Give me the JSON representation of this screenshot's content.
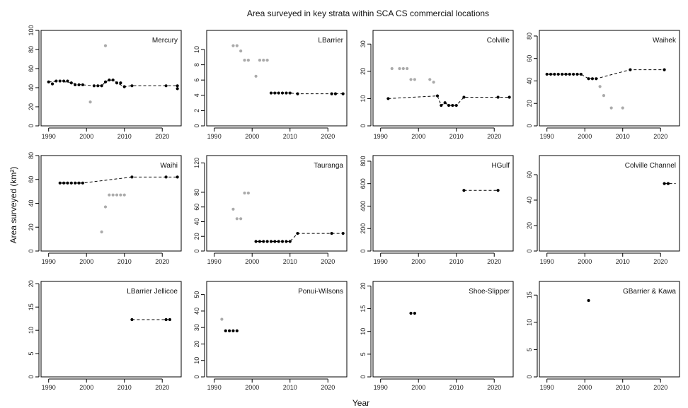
{
  "title": "Area surveyed in key strata within SCA CS commercial locations",
  "xlabel": "Year",
  "ylabel": "Area surveyed (km²)",
  "chart_data": {
    "type": "scatter",
    "title": "Area surveyed in key strata within SCA CS commercial locations",
    "xlabel": "Year",
    "ylabel": "Area surveyed (km²)",
    "legend": "none",
    "grid": false,
    "colors": {
      "current": "#000000",
      "historical": "#aaaaaa",
      "trend": "#000000"
    },
    "panels": [
      {
        "name": "Mercury",
        "xlim": [
          1988,
          2025
        ],
        "ylim": [
          0,
          100
        ],
        "xticks": [
          1990,
          2000,
          2010,
          2020
        ],
        "yticks": [
          0,
          20,
          40,
          60,
          80,
          100
        ],
        "series": [
          {
            "kind": "current",
            "x": [
              1990,
              1991,
              1992,
              1993,
              1994,
              1995,
              1996,
              1997,
              1998,
              1999,
              2002,
              2003,
              2004,
              2005,
              2006,
              2007,
              2008,
              2009,
              2010,
              2012,
              2021,
              2024,
              2024
            ],
            "y": [
              46,
              44,
              47,
              47,
              47,
              47,
              45,
              43,
              43,
              43,
              42,
              42,
              42,
              46,
              48,
              48,
              45,
              45,
              41,
              42,
              42,
              42,
              39
            ]
          },
          {
            "kind": "historical",
            "x": [
              2001,
              2005
            ],
            "y": [
              25,
              84
            ]
          },
          {
            "kind": "trend",
            "x": [
              1990,
              1993,
              1996,
              1999,
              2002,
              2004,
              2005,
              2006,
              2007,
              2008,
              2010,
              2012,
              2024
            ],
            "y": [
              46,
              47,
              45,
              43,
              42,
              42,
              46,
              48,
              48,
              45,
              41,
              42,
              42
            ]
          }
        ]
      },
      {
        "name": "LBarrier",
        "xlim": [
          1988,
          2025
        ],
        "ylim": [
          0,
          12.5
        ],
        "xticks": [
          1990,
          2000,
          2010,
          2020
        ],
        "yticks": [
          0,
          2,
          4,
          6,
          8,
          10
        ],
        "series": [
          {
            "kind": "current",
            "x": [
              2005,
              2006,
              2007,
              2008,
              2009,
              2010,
              2012,
              2021,
              2022,
              2024
            ],
            "y": [
              4.3,
              4.3,
              4.3,
              4.3,
              4.3,
              4.3,
              4.2,
              4.2,
              4.2,
              4.2
            ]
          },
          {
            "kind": "historical",
            "x": [
              1995,
              1996,
              1997,
              1998,
              1999,
              2001,
              2002,
              2003,
              2004
            ],
            "y": [
              10.5,
              10.5,
              9.8,
              8.6,
              8.6,
              6.5,
              8.6,
              8.6,
              8.6
            ]
          },
          {
            "kind": "trend",
            "x": [
              2005,
              2010,
              2012,
              2024
            ],
            "y": [
              4.3,
              4.3,
              4.2,
              4.2
            ]
          }
        ]
      },
      {
        "name": "Colville",
        "xlim": [
          1988,
          2025
        ],
        "ylim": [
          0,
          35
        ],
        "xticks": [
          1990,
          2000,
          2010,
          2020
        ],
        "yticks": [
          0,
          10,
          20,
          30
        ],
        "series": [
          {
            "kind": "current",
            "x": [
              1992,
              2005,
              2006,
              2007,
              2008,
              2009,
              2010,
              2012,
              2021,
              2024
            ],
            "y": [
              10,
              11,
              7.5,
              8.5,
              7.5,
              7.5,
              7.5,
              10.5,
              10.5,
              10.5
            ]
          },
          {
            "kind": "historical",
            "x": [
              1993,
              1995,
              1996,
              1997,
              1998,
              1999,
              2003,
              2004
            ],
            "y": [
              21,
              21,
              21,
              21,
              17,
              17,
              17,
              16
            ]
          },
          {
            "kind": "trend",
            "x": [
              1992,
              2005,
              2006,
              2007,
              2008,
              2010,
              2012,
              2024
            ],
            "y": [
              10,
              11,
              7.5,
              8.5,
              7.5,
              7.5,
              10.5,
              10.5
            ]
          }
        ]
      },
      {
        "name": "Waihek",
        "xlim": [
          1988,
          2025
        ],
        "ylim": [
          0,
          85
        ],
        "xticks": [
          1990,
          2000,
          2010,
          2020
        ],
        "yticks": [
          0,
          20,
          40,
          60,
          80
        ],
        "series": [
          {
            "kind": "current",
            "x": [
              1990,
              1991,
              1992,
              1993,
              1994,
              1995,
              1996,
              1997,
              1998,
              1999,
              2001,
              2002,
              2003,
              2012,
              2021
            ],
            "y": [
              46,
              46,
              46,
              46,
              46,
              46,
              46,
              46,
              46,
              46,
              42,
              42,
              42,
              50,
              50
            ]
          },
          {
            "kind": "historical",
            "x": [
              2004,
              2005,
              2007,
              2010
            ],
            "y": [
              35,
              27,
              16,
              16
            ]
          },
          {
            "kind": "trend",
            "x": [
              1990,
              1999,
              2001,
              2003,
              2012,
              2021
            ],
            "y": [
              46,
              46,
              42,
              42,
              50,
              50
            ]
          }
        ]
      },
      {
        "name": "Waihi",
        "xlim": [
          1988,
          2025
        ],
        "ylim": [
          0,
          80
        ],
        "xticks": [
          1990,
          2000,
          2010,
          2020
        ],
        "yticks": [
          0,
          20,
          40,
          60,
          80
        ],
        "series": [
          {
            "kind": "current",
            "x": [
              1993,
              1994,
              1995,
              1996,
              1997,
              1998,
              1999,
              2012,
              2021,
              2024
            ],
            "y": [
              57,
              57,
              57,
              57,
              57,
              57,
              57,
              62,
              62,
              62
            ]
          },
          {
            "kind": "historical",
            "x": [
              2004,
              2005,
              2006,
              2007,
              2008,
              2009,
              2010
            ],
            "y": [
              16,
              37,
              47,
              47,
              47,
              47,
              47
            ]
          },
          {
            "kind": "trend",
            "x": [
              1993,
              1999,
              2012,
              2024
            ],
            "y": [
              57,
              57,
              62,
              62
            ]
          }
        ]
      },
      {
        "name": "Tauranga",
        "xlim": [
          1988,
          2025
        ],
        "ylim": [
          0,
          130
        ],
        "xticks": [
          1990,
          2000,
          2010,
          2020
        ],
        "yticks": [
          0,
          20,
          40,
          60,
          80,
          120
        ],
        "series": [
          {
            "kind": "current",
            "x": [
              2001,
              2002,
              2003,
              2004,
              2005,
              2006,
              2007,
              2008,
              2009,
              2010,
              2012,
              2021,
              2024
            ],
            "y": [
              13,
              13,
              13,
              13,
              13,
              13,
              13,
              13,
              13,
              13,
              24,
              24,
              24
            ]
          },
          {
            "kind": "historical",
            "x": [
              1995,
              1996,
              1997,
              1998,
              1999
            ],
            "y": [
              57,
              44,
              44,
              79,
              79
            ]
          },
          {
            "kind": "trend",
            "x": [
              2001,
              2010,
              2012,
              2024
            ],
            "y": [
              13,
              13,
              24,
              24
            ]
          }
        ]
      },
      {
        "name": "HGulf",
        "xlim": [
          1988,
          2025
        ],
        "ylim": [
          0,
          850
        ],
        "xticks": [
          1990,
          2000,
          2010,
          2020
        ],
        "yticks": [
          0,
          200,
          400,
          600,
          800
        ],
        "series": [
          {
            "kind": "current",
            "x": [
              2012,
              2021
            ],
            "y": [
              540,
              540
            ]
          },
          {
            "kind": "trend",
            "x": [
              2012,
              2021
            ],
            "y": [
              540,
              540
            ]
          }
        ]
      },
      {
        "name": "Colville Channel",
        "xlim": [
          1988,
          2025
        ],
        "ylim": [
          0,
          75
        ],
        "xticks": [
          1990,
          2000,
          2010,
          2020
        ],
        "yticks": [
          0,
          20,
          40,
          60
        ],
        "series": [
          {
            "kind": "current",
            "x": [
              2021,
              2022
            ],
            "y": [
              53,
              53
            ]
          },
          {
            "kind": "trend",
            "x": [
              2021,
              2024
            ],
            "y": [
              53,
              53
            ]
          }
        ]
      },
      {
        "name": "LBarrier Jellicoe",
        "xlim": [
          1988,
          2025
        ],
        "ylim": [
          0,
          20.5
        ],
        "xticks": [
          1990,
          2000,
          2010,
          2020
        ],
        "yticks": [
          0,
          5,
          10,
          15,
          20
        ],
        "series": [
          {
            "kind": "current",
            "x": [
              2012,
              2021,
              2022
            ],
            "y": [
              12.3,
              12.3,
              12.3
            ]
          },
          {
            "kind": "trend",
            "x": [
              2012,
              2022
            ],
            "y": [
              12.3,
              12.3
            ]
          }
        ]
      },
      {
        "name": "Ponui-Wilsons",
        "xlim": [
          1988,
          2025
        ],
        "ylim": [
          0,
          58
        ],
        "xticks": [
          1990,
          2000,
          2010,
          2020
        ],
        "yticks": [
          0,
          10,
          20,
          30,
          40,
          50
        ],
        "series": [
          {
            "kind": "current",
            "x": [
              1993,
              1994,
              1995,
              1996
            ],
            "y": [
              28,
              28,
              28,
              28
            ]
          },
          {
            "kind": "historical",
            "x": [
              1992
            ],
            "y": [
              35
            ]
          }
        ]
      },
      {
        "name": "Shoe-Slipper",
        "xlim": [
          1988,
          2025
        ],
        "ylim": [
          0,
          21
        ],
        "xticks": [
          1990,
          2000,
          2010,
          2020
        ],
        "yticks": [
          0,
          5,
          10,
          15,
          20
        ],
        "series": [
          {
            "kind": "current",
            "x": [
              1998,
              1999
            ],
            "y": [
              14,
              14
            ]
          }
        ]
      },
      {
        "name": "GBarrier & Kawa",
        "xlim": [
          1988,
          2025
        ],
        "ylim": [
          0,
          17.5
        ],
        "xticks": [
          1990,
          2000,
          2010,
          2020
        ],
        "yticks": [
          0,
          5,
          10,
          15
        ],
        "series": [
          {
            "kind": "current",
            "x": [
              2001
            ],
            "y": [
              14
            ]
          }
        ]
      }
    ]
  }
}
